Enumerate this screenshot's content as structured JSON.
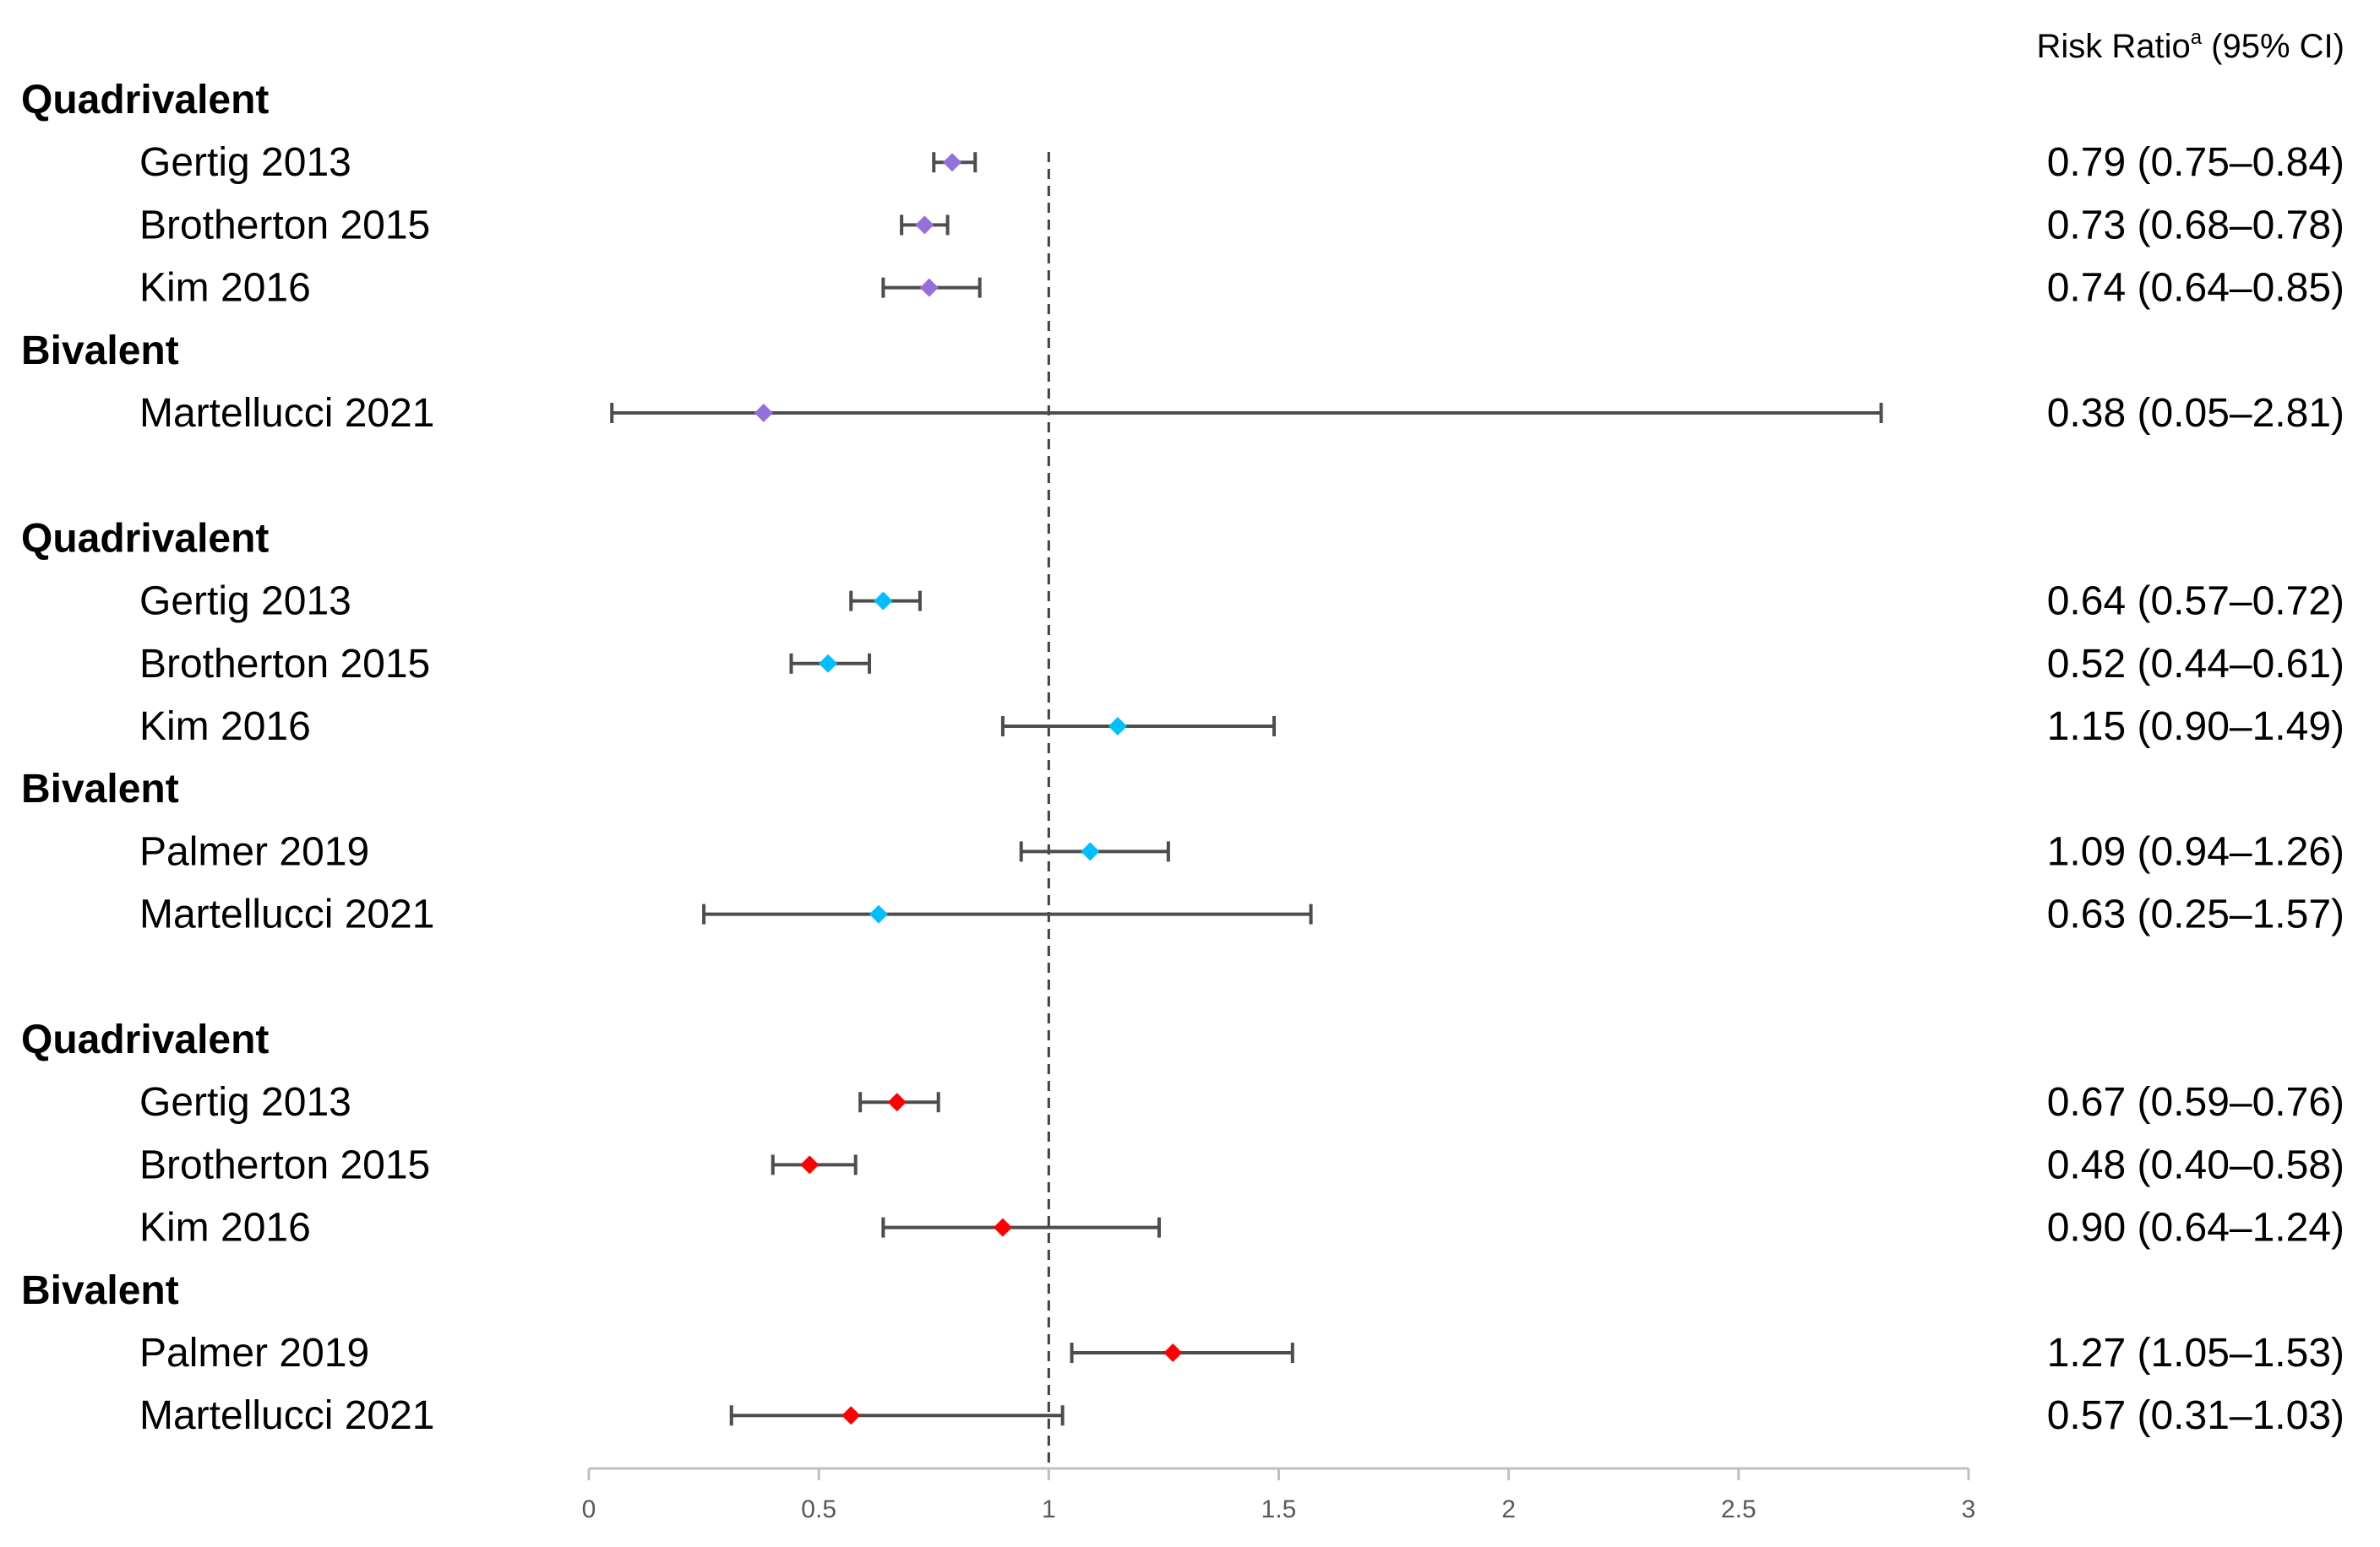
{
  "chart_data": {
    "type": "forest",
    "header": {
      "label": "Risk Ratio",
      "superscript": "a",
      "ci": " (95% CI)"
    },
    "xlim": [
      0,
      3
    ],
    "x_ticks": [
      {
        "value": 0,
        "label": "0"
      },
      {
        "value": 0.5,
        "label": "0.5"
      },
      {
        "value": 1,
        "label": "1"
      },
      {
        "value": 1.5,
        "label": "1.5"
      },
      {
        "value": 2,
        "label": "2"
      },
      {
        "value": 2.5,
        "label": "2.5"
      },
      {
        "value": 3,
        "label": "3"
      }
    ],
    "reference_line": 1,
    "colors": {
      "series1": "#9370db",
      "series2": "#00bfff",
      "series3": "#ff0000",
      "whisker": "#4d4d4d"
    },
    "rows": [
      {
        "kind": "group",
        "label": "Quadrivalent"
      },
      {
        "kind": "study",
        "label": "Gertig 2013",
        "series": "series1",
        "rr": 0.79,
        "lo": 0.75,
        "hi": 0.84,
        "text": "0.79 (0.75–0.84)"
      },
      {
        "kind": "study",
        "label": "Brotherton 2015",
        "series": "series1",
        "rr": 0.73,
        "lo": 0.68,
        "hi": 0.78,
        "text": "0.73 (0.68–0.78)"
      },
      {
        "kind": "study",
        "label": "Kim 2016",
        "series": "series1",
        "rr": 0.74,
        "lo": 0.64,
        "hi": 0.85,
        "text": "0.74 (0.64–0.85)"
      },
      {
        "kind": "group",
        "label": "Bivalent"
      },
      {
        "kind": "study",
        "label": "Martellucci 2021",
        "series": "series1",
        "rr": 0.38,
        "lo": 0.05,
        "hi": 2.81,
        "text": "0.38 (0.05–2.81)"
      },
      {
        "kind": "gap"
      },
      {
        "kind": "group",
        "label": "Quadrivalent"
      },
      {
        "kind": "study",
        "label": "Gertig 2013",
        "series": "series2",
        "rr": 0.64,
        "lo": 0.57,
        "hi": 0.72,
        "text": "0.64 (0.57–0.72)"
      },
      {
        "kind": "study",
        "label": "Brotherton 2015",
        "series": "series2",
        "rr": 0.52,
        "lo": 0.44,
        "hi": 0.61,
        "text": "0.52 (0.44–0.61)"
      },
      {
        "kind": "study",
        "label": "Kim 2016",
        "series": "series2",
        "rr": 1.15,
        "lo": 0.9,
        "hi": 1.49,
        "text": "1.15 (0.90–1.49)"
      },
      {
        "kind": "group",
        "label": "Bivalent"
      },
      {
        "kind": "study",
        "label": "Palmer 2019",
        "series": "series2",
        "rr": 1.09,
        "lo": 0.94,
        "hi": 1.26,
        "text": "1.09 (0.94–1.26)"
      },
      {
        "kind": "study",
        "label": "Martellucci 2021",
        "series": "series2",
        "rr": 0.63,
        "lo": 0.25,
        "hi": 1.57,
        "text": "0.63 (0.25–1.57)"
      },
      {
        "kind": "gap"
      },
      {
        "kind": "group",
        "label": "Quadrivalent"
      },
      {
        "kind": "study",
        "label": "Gertig 2013",
        "series": "series3",
        "rr": 0.67,
        "lo": 0.59,
        "hi": 0.76,
        "text": "0.67 (0.59–0.76)"
      },
      {
        "kind": "study",
        "label": "Brotherton 2015",
        "series": "series3",
        "rr": 0.48,
        "lo": 0.4,
        "hi": 0.58,
        "text": "0.48 (0.40–0.58)"
      },
      {
        "kind": "study",
        "label": "Kim 2016",
        "series": "series3",
        "rr": 0.9,
        "lo": 0.64,
        "hi": 1.24,
        "text": "0.90 (0.64–1.24)"
      },
      {
        "kind": "group",
        "label": "Bivalent"
      },
      {
        "kind": "study",
        "label": "Palmer 2019",
        "series": "series3",
        "rr": 1.27,
        "lo": 1.05,
        "hi": 1.53,
        "text": "1.27 (1.05–1.53)"
      },
      {
        "kind": "study",
        "label": "Martellucci 2021",
        "series": "series3",
        "rr": 0.57,
        "lo": 0.31,
        "hi": 1.03,
        "text": "0.57 (0.31–1.03)"
      }
    ]
  }
}
